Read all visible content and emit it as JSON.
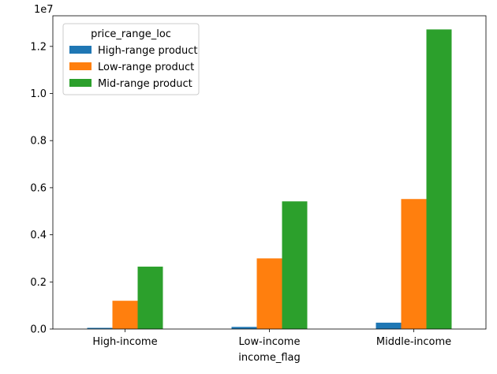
{
  "chart_data": {
    "type": "bar",
    "title": "",
    "xlabel": "income_flag",
    "ylabel": "",
    "y_exponent_label": "1e7",
    "categories": [
      "High-income",
      "Low-income",
      "Middle-income"
    ],
    "series": [
      {
        "name": "High-range product",
        "color": "#1f77b4",
        "values": [
          50000,
          90000,
          270000
        ]
      },
      {
        "name": "Low-range product",
        "color": "#ff7f0e",
        "values": [
          1200000,
          3000000,
          5520000
        ]
      },
      {
        "name": "Mid-range product",
        "color": "#2ca02c",
        "values": [
          2650000,
          5420000,
          12720000
        ]
      }
    ],
    "ylim": [
      0,
      13300000
    ],
    "yticks": [
      0,
      2000000,
      4000000,
      6000000,
      8000000,
      10000000,
      12000000
    ],
    "ytick_labels": [
      "0.0",
      "0.2",
      "0.4",
      "0.6",
      "0.8",
      "1.0",
      "1.2"
    ],
    "legend": {
      "title": "price_range_loc",
      "position": "top-left"
    },
    "grid": false
  }
}
